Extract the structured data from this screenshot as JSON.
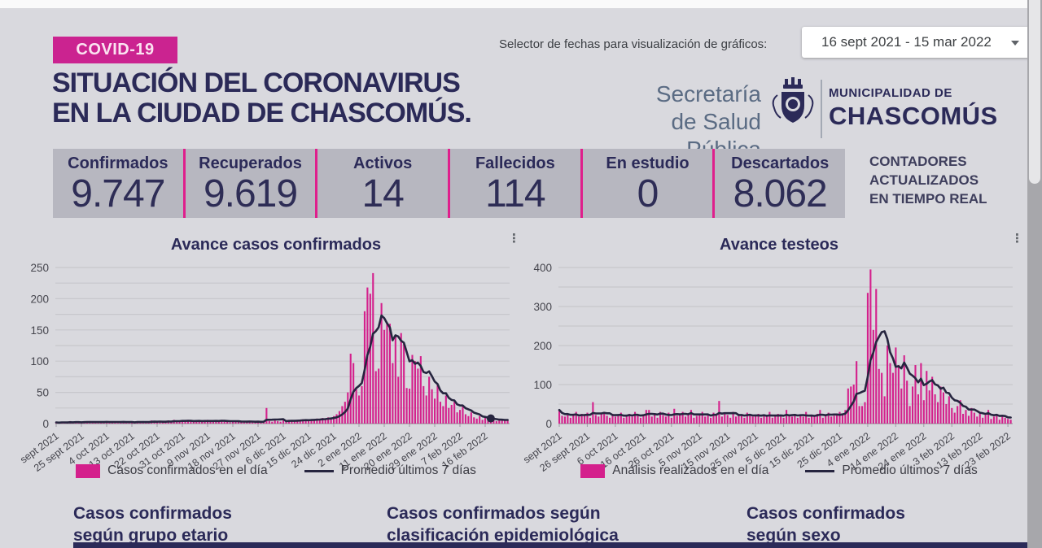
{
  "page": {
    "bg": "#d9d9de",
    "accent_magenta": "#d4208c",
    "navy": "#2b2a58"
  },
  "header": {
    "badge": "COVID-19",
    "title_line1": "SITUACIÓN DEL CORONAVIRUS",
    "title_line2": "EN LA CIUDAD DE CHASCOMÚS.",
    "date_selector_label": "Selector de fechas para visualización de gráficos:",
    "date_range_value": "16 sept 2021 - 15 mar 2022",
    "logo": {
      "org_line1": "Secretaría",
      "org_line2": "de Salud Pública",
      "muni_line1": "MUNICIPALIDAD DE",
      "muni_line2": "CHASCOMÚS",
      "crest_icon": "municipal-crest-icon"
    }
  },
  "counters": {
    "items": [
      {
        "label": "Confirmados",
        "value": "9.747"
      },
      {
        "label": "Recuperados",
        "value": "9.619"
      },
      {
        "label": "Activos",
        "value": "14"
      },
      {
        "label": "Fallecidos",
        "value": "114"
      },
      {
        "label": "En estudio",
        "value": "0"
      },
      {
        "label": "Descartados",
        "value": "8.062"
      }
    ],
    "note_lines": [
      "CONTADORES",
      "ACTUALIZADOS",
      "EN TIEMPO REAL"
    ]
  },
  "chart_data": [
    {
      "type": "bar+line",
      "title": "Avance casos confirmados",
      "bar_label": "Casos confirmados en el día",
      "line_label": "Promedio últimos 7 días",
      "bar_color": "#d4208c",
      "line_color": "#26253f",
      "ylim": [
        0,
        250
      ],
      "grid_step": 25,
      "ylabel_step": 50,
      "x_tick_days": [
        0,
        9,
        18,
        27,
        36,
        45,
        54,
        63,
        72,
        81,
        90,
        99,
        108,
        117,
        126,
        135,
        144,
        153
      ],
      "x_tick_labels": [
        "sept 2021",
        "25 sept 2021",
        "4 oct 2021",
        "13 oct 2021",
        "22 oct 2021",
        "31 oct 2021",
        "9 nov 2021",
        "18 nov 2021",
        "27 nov 2021",
        "6 dic 2021",
        "15 dic 2021",
        "24 dic 2021",
        "2 ene 2022",
        "11 ene 2022",
        "20 ene 2022",
        "29 ene 2022",
        "7 feb 2022",
        "16 feb 2022"
      ],
      "line_is": "7-day trailing average of values",
      "marker_day": 155,
      "values": [
        2,
        1,
        3,
        2,
        1,
        4,
        2,
        3,
        1,
        2,
        3,
        2,
        4,
        3,
        2,
        1,
        3,
        2,
        4,
        3,
        2,
        3,
        1,
        2,
        4,
        2,
        3,
        2,
        1,
        3,
        2,
        4,
        3,
        2,
        5,
        3,
        2,
        4,
        2,
        3,
        5,
        4,
        6,
        3,
        4,
        5,
        3,
        6,
        4,
        3,
        4,
        5,
        3,
        4,
        6,
        4,
        3,
        5,
        4,
        6,
        3,
        4,
        2,
        3,
        5,
        3,
        4,
        2,
        3,
        4,
        2,
        3,
        4,
        2,
        3,
        25,
        4,
        3,
        5,
        4,
        3,
        5,
        4,
        6,
        5,
        4,
        6,
        5,
        7,
        6,
        5,
        7,
        6,
        8,
        7,
        9,
        8,
        10,
        9,
        12,
        15,
        20,
        28,
        35,
        50,
        112,
        97,
        55,
        45,
        60,
        180,
        218,
        208,
        241,
        84,
        88,
        193,
        150,
        162,
        160,
        97,
        140,
        75,
        145,
        128,
        57,
        56,
        110,
        100,
        88,
        108,
        60,
        45,
        75,
        55,
        40,
        62,
        35,
        28,
        45,
        25,
        30,
        35,
        18,
        22,
        28,
        15,
        12,
        18,
        10,
        8,
        12,
        6,
        9,
        5,
        8,
        6,
        4,
        7,
        5,
        6,
        5
      ]
    },
    {
      "type": "bar+line",
      "title": "Avance testeos",
      "bar_label": "Análisis realizados en el día",
      "line_label": "Promedio últimos 7 días",
      "bar_color": "#d4208c",
      "line_color": "#26253f",
      "ylim": [
        0,
        400
      ],
      "grid_step": 50,
      "ylabel_step": 100,
      "x_tick_days": [
        0,
        10,
        20,
        30,
        40,
        50,
        60,
        70,
        80,
        90,
        100,
        110,
        120,
        130,
        140,
        150,
        160
      ],
      "x_tick_labels": [
        "sept 2021",
        "26 sept 2021",
        "6 oct 2021",
        "16 oct 2021",
        "26 oct 2021",
        "5 nov 2021",
        "15 nov 2021",
        "25 nov 2021",
        "5 dic 2021",
        "15 dic 2021",
        "25 dic 2021",
        "4 ene 2022",
        "14 ene 2022",
        "24 ene 2022",
        "3 feb 2022",
        "13 feb 2022",
        "23 feb 2022"
      ],
      "line_is": "7-day trailing average of values",
      "marker_day": null,
      "values": [
        35,
        20,
        18,
        25,
        15,
        22,
        30,
        18,
        25,
        20,
        28,
        15,
        55,
        22,
        18,
        25,
        30,
        20,
        15,
        25,
        18,
        22,
        28,
        15,
        20,
        25,
        18,
        30,
        22,
        15,
        20,
        35,
        35,
        18,
        25,
        15,
        30,
        22,
        18,
        28,
        15,
        38,
        20,
        25,
        30,
        18,
        22,
        35,
        15,
        20,
        25,
        30,
        18,
        22,
        15,
        28,
        20,
        58,
        18,
        25,
        22,
        15,
        30,
        18,
        25,
        20,
        15,
        28,
        22,
        18,
        20,
        25,
        15,
        22,
        18,
        30,
        15,
        20,
        25,
        18,
        15,
        35,
        20,
        18,
        25,
        15,
        22,
        18,
        30,
        15,
        20,
        18,
        25,
        35,
        15,
        22,
        28,
        18,
        20,
        25,
        30,
        22,
        35,
        90,
        95,
        100,
        160,
        45,
        45,
        55,
        335,
        395,
        240,
        345,
        140,
        130,
        70,
        200,
        155,
        130,
        195,
        150,
        90,
        175,
        110,
        45,
        95,
        150,
        75,
        155,
        60,
        135,
        85,
        120,
        75,
        55,
        95,
        80,
        50,
        70,
        40,
        28,
        45,
        60,
        25,
        35,
        20,
        40,
        28,
        18,
        30,
        15,
        22,
        35,
        12,
        18,
        25,
        10,
        20,
        15,
        12,
        10
      ]
    }
  ],
  "sections": [
    "Casos confirmados según grupo etario",
    "Casos confirmados según clasificación epidemiológica",
    "Casos confirmados según sexo"
  ]
}
